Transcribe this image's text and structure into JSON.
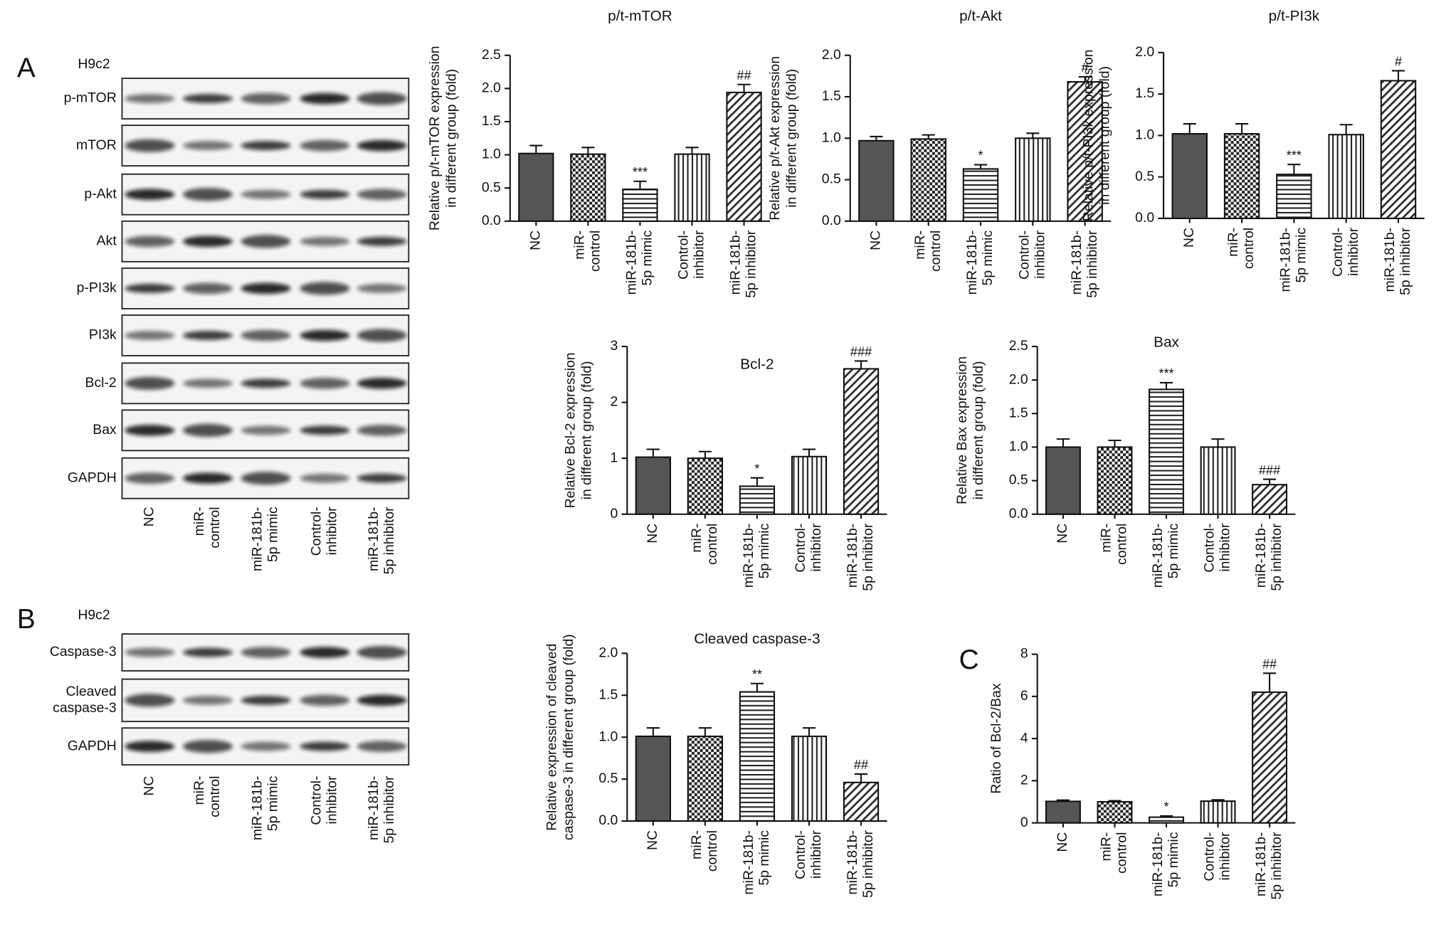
{
  "blots": {
    "lanes": [
      [
        "NC"
      ],
      [
        "miR-",
        "control"
      ],
      [
        "miR-181b-",
        "5p mimic"
      ],
      [
        "Control-",
        "inhibitor"
      ],
      [
        "miR-181b-",
        "5p inhibitor"
      ]
    ],
    "A": {
      "label": "A",
      "cell": "H9c2",
      "rows": [
        [
          "p-mTOR"
        ],
        [
          "mTOR"
        ],
        [
          "p-Akt"
        ],
        [
          "Akt"
        ],
        [
          "p-PI3k"
        ],
        [
          "PI3k"
        ],
        [
          "Bcl-2"
        ],
        [
          "Bax"
        ],
        [
          "GAPDH"
        ]
      ]
    },
    "B": {
      "label": "B",
      "cell": "H9c2",
      "rows": [
        [
          "Caspase-3"
        ],
        [
          "Cleaved",
          "caspase-3"
        ],
        [
          "GAPDH"
        ]
      ]
    }
  },
  "chart_data": [
    {
      "type": "bar",
      "title": "p/t-mTOR",
      "y_label": [
        "Relative p/t-mTOR expression",
        "in different group (fold)"
      ],
      "categories": [
        [
          "NC"
        ],
        [
          "miR-",
          "control"
        ],
        [
          "miR-181b-",
          "5p mimic"
        ],
        [
          "Control-",
          "inhibitor"
        ],
        [
          "miR-181b-",
          "5p inhibitor"
        ]
      ],
      "values": [
        1.02,
        1.01,
        0.48,
        1.01,
        1.94
      ],
      "errors": [
        0.12,
        0.1,
        0.12,
        0.1,
        0.12
      ],
      "annotations": [
        null,
        null,
        "***",
        null,
        "##"
      ],
      "ylim": [
        0,
        2.5
      ],
      "yticks": [
        {
          "value": 0,
          "label": "0.0"
        },
        {
          "value": 0.5,
          "label": "0.5"
        },
        {
          "value": 1,
          "label": "1.0"
        },
        {
          "value": 1.5,
          "label": "1.5"
        },
        {
          "value": 2,
          "label": "2.0"
        },
        {
          "value": 2.5,
          "label": "2.5"
        }
      ]
    },
    {
      "type": "bar",
      "title": "p/t-Akt",
      "y_label": [
        "Relative p/t-Akt expression",
        "in different group (fold)"
      ],
      "categories": [
        [
          "NC"
        ],
        [
          "miR-",
          "control"
        ],
        [
          "miR-181b-",
          "5p mimic"
        ],
        [
          "Control-",
          "inhibitor"
        ],
        [
          "miR-181b-",
          "5p inhibitor"
        ]
      ],
      "values": [
        0.97,
        0.99,
        0.63,
        1.0,
        1.68
      ],
      "errors": [
        0.05,
        0.05,
        0.05,
        0.06,
        0.06
      ],
      "annotations": [
        null,
        null,
        "*",
        null,
        "#"
      ],
      "ylim": [
        0,
        2
      ],
      "yticks": [
        {
          "value": 0,
          "label": "0.0"
        },
        {
          "value": 0.5,
          "label": "0.5"
        },
        {
          "value": 1,
          "label": "1.0"
        },
        {
          "value": 1.5,
          "label": "1.5"
        },
        {
          "value": 2,
          "label": "2.0"
        }
      ]
    },
    {
      "type": "bar",
      "title": "p/t-PI3k",
      "y_label": [
        "Relative p/t-PI3k expression",
        "in different group (fold)"
      ],
      "categories": [
        [
          "NC"
        ],
        [
          "miR-",
          "control"
        ],
        [
          "miR-181b-",
          "5p mimic"
        ],
        [
          "Control-",
          "inhibitor"
        ],
        [
          "miR-181b-",
          "5p inhibitor"
        ]
      ],
      "values": [
        1.02,
        1.02,
        0.53,
        1.01,
        1.66
      ],
      "errors": [
        0.12,
        0.12,
        0.12,
        0.12,
        0.12
      ],
      "annotations": [
        null,
        null,
        "***",
        null,
        "#"
      ],
      "ylim": [
        0,
        2
      ],
      "yticks": [
        {
          "value": 0,
          "label": "0.0"
        },
        {
          "value": 0.5,
          "label": "0.5"
        },
        {
          "value": 1,
          "label": "1.0"
        },
        {
          "value": 1.5,
          "label": "1.5"
        },
        {
          "value": 2,
          "label": "2.0"
        }
      ]
    },
    {
      "type": "bar",
      "title": "Bcl-2",
      "y_label": [
        "Relative Bcl-2 expression",
        "in different group (fold)"
      ],
      "categories": [
        [
          "NC"
        ],
        [
          "miR-",
          "control"
        ],
        [
          "miR-181b-",
          "5p mimic"
        ],
        [
          "Control-",
          "inhibitor"
        ],
        [
          "miR-181b-",
          "5p inhibitor"
        ]
      ],
      "values": [
        1.02,
        1.0,
        0.5,
        1.03,
        2.6
      ],
      "errors": [
        0.14,
        0.12,
        0.15,
        0.13,
        0.14
      ],
      "annotations": [
        null,
        null,
        "*",
        null,
        "###"
      ],
      "ylim": [
        0,
        3
      ],
      "yticks": [
        0,
        1,
        2,
        3
      ]
    },
    {
      "type": "bar",
      "title": "Bax",
      "y_label": [
        "Relative Bax expression",
        "in different group (fold)"
      ],
      "categories": [
        [
          "NC"
        ],
        [
          "miR-",
          "control"
        ],
        [
          "miR-181b-",
          "5p mimic"
        ],
        [
          "Control-",
          "inhibitor"
        ],
        [
          "miR-181b-",
          "5p inhibitor"
        ]
      ],
      "values": [
        1.0,
        1.0,
        1.86,
        1.0,
        0.44
      ],
      "errors": [
        0.12,
        0.1,
        0.1,
        0.12,
        0.08
      ],
      "annotations": [
        null,
        null,
        "***",
        null,
        "###"
      ],
      "ylim": [
        0,
        2.5
      ],
      "yticks": [
        {
          "value": 0,
          "label": "0.0"
        },
        {
          "value": 0.5,
          "label": "0.5"
        },
        {
          "value": 1,
          "label": "1.0"
        },
        {
          "value": 1.5,
          "label": "1.5"
        },
        {
          "value": 2,
          "label": "2.0"
        },
        {
          "value": 2.5,
          "label": "2.5"
        }
      ]
    },
    {
      "type": "bar",
      "title": "Cleaved caspase-3",
      "y_label": [
        "Relative expression of cleaved",
        "caspase-3 in different group (fold)"
      ],
      "categories": [
        [
          "NC"
        ],
        [
          "miR-",
          "control"
        ],
        [
          "miR-181b-",
          "5p mimic"
        ],
        [
          "Control-",
          "inhibitor"
        ],
        [
          "miR-181b-",
          "5p inhibitor"
        ]
      ],
      "values": [
        1.01,
        1.01,
        1.54,
        1.01,
        0.46
      ],
      "errors": [
        0.1,
        0.1,
        0.1,
        0.1,
        0.1
      ],
      "annotations": [
        null,
        null,
        "**",
        null,
        "##"
      ],
      "ylim": [
        0,
        2
      ],
      "yticks": [
        {
          "value": 0,
          "label": "0.0"
        },
        {
          "value": 0.5,
          "label": "0.5"
        },
        {
          "value": 1,
          "label": "1.0"
        },
        {
          "value": 1.5,
          "label": "1.5"
        },
        {
          "value": 2,
          "label": "2.0"
        }
      ]
    },
    {
      "type": "bar",
      "panel_label": "C",
      "y_label": [
        "Ratio of Bcl-2/Bax"
      ],
      "categories": [
        [
          "NC"
        ],
        [
          "miR-",
          "control"
        ],
        [
          "miR-181b-",
          "5p mimic"
        ],
        [
          "Control-",
          "inhibitor"
        ],
        [
          "miR-181b-",
          "5p inhibitor"
        ]
      ],
      "values": [
        1.02,
        1.0,
        0.27,
        1.03,
        6.2
      ],
      "errors": [
        0.06,
        0.05,
        0.06,
        0.06,
        0.9
      ],
      "annotations": [
        null,
        null,
        "*",
        null,
        "##"
      ],
      "ylim": [
        0,
        8
      ],
      "yticks": [
        0,
        2,
        4,
        6,
        8
      ]
    }
  ]
}
